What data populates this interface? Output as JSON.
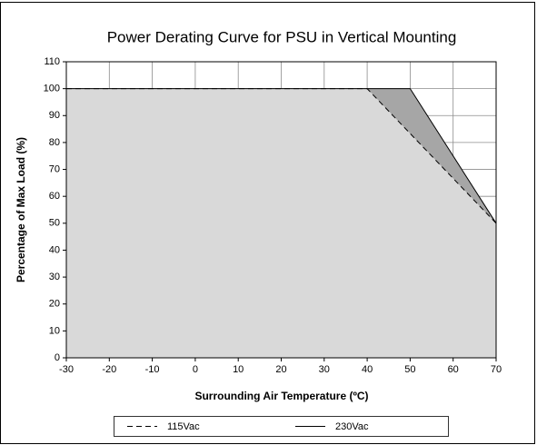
{
  "chart_data": {
    "type": "line",
    "title": "Power Derating Curve for PSU in Vertical Mounting",
    "xlabel": "Surrounding Air Temperature (ºC)",
    "ylabel": "Percentage of Max Load (%)",
    "series": [
      {
        "name": "115Vac",
        "color": "#000000",
        "fill": "#d9d9d9",
        "line_style": "dashed",
        "x": [
          -30,
          40,
          70,
          70
        ],
        "values": [
          100,
          100,
          50,
          0
        ]
      },
      {
        "name": "230Vac",
        "color": "#000000",
        "fill": "#a6a6a6",
        "line_style": "solid",
        "x": [
          -30,
          50,
          70,
          70
        ],
        "values": [
          100,
          100,
          50,
          0
        ]
      }
    ],
    "xlim": [
      -30,
      70
    ],
    "xticks": [
      -30,
      -20,
      -10,
      0,
      10,
      20,
      30,
      40,
      50,
      60,
      70
    ],
    "ylim": [
      0,
      110
    ],
    "yticks": [
      0,
      10,
      20,
      30,
      40,
      50,
      60,
      70,
      80,
      90,
      100,
      110
    ],
    "grid": true,
    "legend": "bottom"
  }
}
